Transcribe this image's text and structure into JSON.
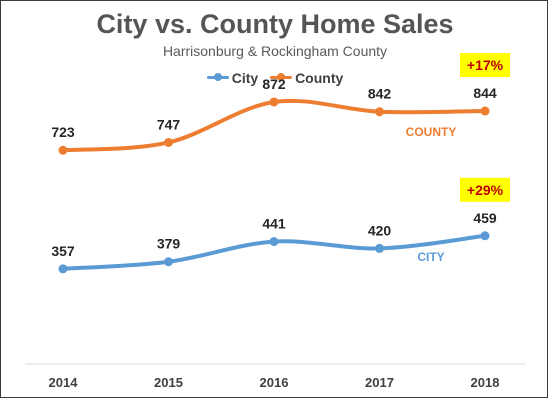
{
  "chart_data": {
    "type": "line",
    "title": "City vs. County Home Sales",
    "subtitle": "Harrisonburg & Rockingham County",
    "x": [
      "2014",
      "2015",
      "2016",
      "2017",
      "2018"
    ],
    "series": [
      {
        "name": "City",
        "values": [
          357,
          379,
          441,
          420,
          459
        ],
        "color": "#5b9bd5",
        "line_label": "CITY",
        "change_label": "+29%"
      },
      {
        "name": "County",
        "values": [
          723,
          747,
          872,
          842,
          844
        ],
        "color": "#ed7d31",
        "line_label": "COUNTY",
        "change_label": "+17%"
      }
    ],
    "ylim": [
      0,
      1000
    ],
    "grid": false,
    "legend": "top-center",
    "callout_color": "#ffff00",
    "callout_text_color": "#c00000"
  }
}
